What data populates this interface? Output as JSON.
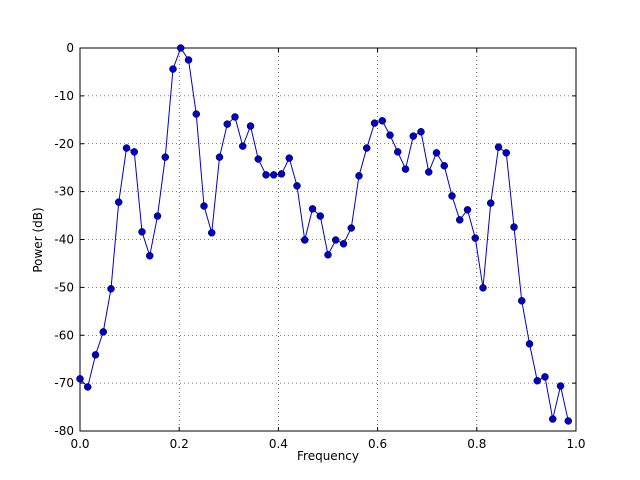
{
  "chart_data": {
    "type": "line",
    "xlabel": "Frequency",
    "ylabel": "Power (dB)",
    "x": [
      0,
      0.0156,
      0.0313,
      0.0469,
      0.0625,
      0.0781,
      0.0938,
      0.1094,
      0.125,
      0.1406,
      0.1563,
      0.1719,
      0.1875,
      0.2031,
      0.2188,
      0.2344,
      0.25,
      0.2656,
      0.2813,
      0.2969,
      0.3125,
      0.3281,
      0.3438,
      0.3594,
      0.375,
      0.3906,
      0.4063,
      0.4219,
      0.4375,
      0.4531,
      0.4688,
      0.4844,
      0.5,
      0.5156,
      0.5313,
      0.5469,
      0.5625,
      0.5781,
      0.5938,
      0.6094,
      0.625,
      0.6406,
      0.6563,
      0.6719,
      0.6875,
      0.7031,
      0.7188,
      0.7344,
      0.75,
      0.7656,
      0.7813,
      0.7969,
      0.8125,
      0.8281,
      0.8438,
      0.8594,
      0.875,
      0.8906,
      0.9063,
      0.9219,
      0.9375,
      0.9531,
      0.9688,
      0.9844
    ],
    "series": [
      {
        "color": "#0000cc",
        "values": [
          -69.1,
          -70.8,
          -64.1,
          -59.3,
          -50.3,
          -32.2,
          -20.9,
          -21.7,
          -38.4,
          -43.4,
          -35.1,
          -22.8,
          -4.4,
          0,
          -2.5,
          -13.8,
          -33.0,
          -38.6,
          -22.8,
          -15.9,
          -14.4,
          -20.5,
          -16.3,
          -23.2,
          -26.5,
          -26.5,
          -26.3,
          -23.0,
          -28.8,
          -40.1,
          -33.6,
          -35.1,
          -43.2,
          -40.1,
          -40.9,
          -37.6,
          -26.7,
          -20.9,
          -15.7,
          -15.2,
          -18.2,
          -21.7,
          -25.3,
          -18.4,
          -17.5,
          -25.9,
          -21.9,
          -24.6,
          -30.9,
          -35.9,
          -33.8,
          -39.7,
          -50.1,
          -32.4,
          -20.7,
          -21.9,
          -37.4,
          -52.8,
          -61.8,
          -69.5,
          -68.7,
          -77.5,
          -70.6,
          -77.9
        ]
      }
    ],
    "xlim": [
      0,
      1
    ],
    "ylim": [
      -80,
      0
    ],
    "xticks": [
      {
        "value": 0,
        "label": "0.0"
      },
      {
        "value": 0.2,
        "label": "0.2"
      },
      {
        "value": 0.4,
        "label": "0.4"
      },
      {
        "value": 0.6,
        "label": "0.6"
      },
      {
        "value": 0.8,
        "label": "0.8"
      },
      {
        "value": 1,
        "label": "1.0"
      }
    ],
    "yticks": [
      -80,
      -70,
      -60,
      -50,
      -40,
      -30,
      -20,
      -10,
      0
    ],
    "grid": true
  }
}
